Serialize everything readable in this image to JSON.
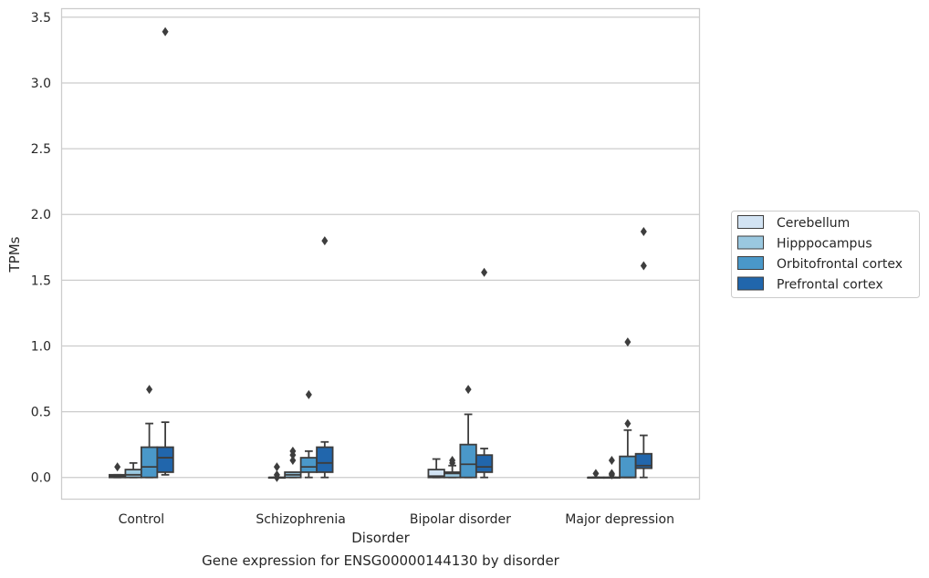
{
  "chart_data": {
    "type": "box",
    "xlabel": "Disorder",
    "ylabel": "TPMs",
    "ylim": [
      -0.165,
      3.565
    ],
    "yticks": [
      0.0,
      0.5,
      1.0,
      1.5,
      2.0,
      2.5,
      3.0,
      3.5
    ],
    "ytick_labels": [
      "0.0",
      "0.5",
      "1.0",
      "1.5",
      "2.0",
      "2.5",
      "3.0",
      "3.5"
    ],
    "grid": "horizontal",
    "legend_position": "right",
    "categories": [
      "Control",
      "Schizophrenia",
      "Bipolar disorder",
      "Major depression"
    ],
    "series": [
      {
        "name": "Cerebellum",
        "color": "#d2e3f3",
        "boxes": [
          {
            "whislo": 0.0,
            "q1": 0.0,
            "med": 0.01,
            "q3": 0.02,
            "whishi": 0.02,
            "fliers": [
              0.08
            ]
          },
          {
            "whislo": 0.0,
            "q1": 0.0,
            "med": 0.0,
            "q3": 0.0,
            "whishi": 0.0,
            "fliers": [
              0.0,
              0.02,
              0.08
            ]
          },
          {
            "whislo": 0.0,
            "q1": 0.0,
            "med": 0.01,
            "q3": 0.06,
            "whishi": 0.14,
            "fliers": []
          },
          {
            "whislo": 0.0,
            "q1": 0.0,
            "med": 0.0,
            "q3": 0.0,
            "whishi": 0.0,
            "fliers": [
              0.03
            ]
          }
        ]
      },
      {
        "name": "Hipppocampus",
        "color": "#9ac8e0",
        "boxes": [
          {
            "whislo": 0.0,
            "q1": 0.0,
            "med": 0.02,
            "q3": 0.06,
            "whishi": 0.11,
            "fliers": []
          },
          {
            "whislo": 0.0,
            "q1": 0.0,
            "med": 0.02,
            "q3": 0.04,
            "whishi": 0.04,
            "fliers": [
              0.13,
              0.17,
              0.2
            ]
          },
          {
            "whislo": 0.0,
            "q1": 0.0,
            "med": 0.03,
            "q3": 0.04,
            "whishi": 0.09,
            "fliers": [
              0.11,
              0.13
            ]
          },
          {
            "whislo": 0.0,
            "q1": 0.0,
            "med": 0.0,
            "q3": 0.0,
            "whishi": 0.0,
            "fliers": [
              0.02,
              0.03,
              0.13
            ]
          }
        ]
      },
      {
        "name": "Orbitofrontal cortex",
        "color": "#4a98c9",
        "boxes": [
          {
            "whislo": 0.0,
            "q1": 0.0,
            "med": 0.08,
            "q3": 0.23,
            "whishi": 0.41,
            "fliers": [
              0.67
            ]
          },
          {
            "whislo": 0.0,
            "q1": 0.04,
            "med": 0.08,
            "q3": 0.15,
            "whishi": 0.2,
            "fliers": [
              0.63
            ]
          },
          {
            "whislo": 0.0,
            "q1": 0.0,
            "med": 0.1,
            "q3": 0.25,
            "whishi": 0.48,
            "fliers": [
              0.67
            ]
          },
          {
            "whislo": 0.0,
            "q1": 0.0,
            "med": 0.0,
            "q3": 0.16,
            "whishi": 0.36,
            "fliers": [
              0.41,
              1.03
            ]
          }
        ]
      },
      {
        "name": "Prefrontal cortex",
        "color": "#2166ac",
        "boxes": [
          {
            "whislo": 0.02,
            "q1": 0.04,
            "med": 0.15,
            "q3": 0.23,
            "whishi": 0.42,
            "fliers": [
              3.39
            ]
          },
          {
            "whislo": 0.0,
            "q1": 0.04,
            "med": 0.11,
            "q3": 0.23,
            "whishi": 0.27,
            "fliers": [
              1.8
            ]
          },
          {
            "whislo": 0.0,
            "q1": 0.04,
            "med": 0.08,
            "q3": 0.17,
            "whishi": 0.22,
            "fliers": [
              1.56
            ]
          },
          {
            "whislo": 0.0,
            "q1": 0.07,
            "med": 0.09,
            "q3": 0.18,
            "whishi": 0.32,
            "fliers": [
              1.61,
              1.87
            ]
          }
        ]
      }
    ]
  },
  "caption": "Gene expression for ENSG00000144130 by disorder"
}
